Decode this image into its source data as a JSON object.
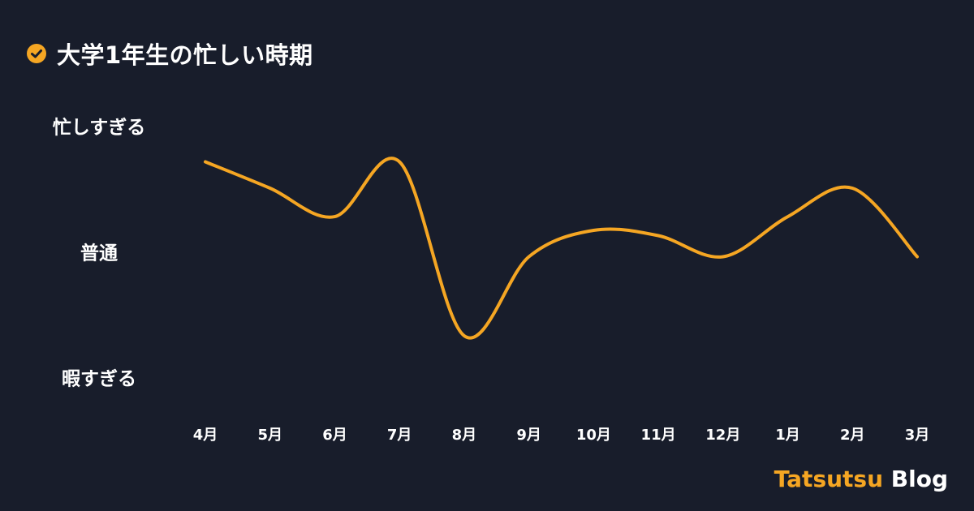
{
  "title": "大学1年生の忙しい時期",
  "brand": {
    "accent": "Tatsutsu",
    "rest": "Blog"
  },
  "colors": {
    "background": "#181d2b",
    "line": "#f5a623",
    "text": "#ffffff",
    "accent": "#f5a623"
  },
  "icons": {
    "title_icon": "check-circle-icon"
  },
  "chart_data": {
    "type": "line",
    "title": "大学1年生の忙しい時期",
    "xlabel": "",
    "ylabel": "",
    "categories": [
      "4月",
      "5月",
      "6月",
      "7月",
      "8月",
      "9月",
      "10月",
      "11月",
      "12月",
      "1月",
      "2月",
      "3月"
    ],
    "y_tick_labels": [
      "忙しすぎる",
      "普通",
      "暇すぎる"
    ],
    "y_scale": "1 = 暇すぎる, 2 = 普通, 3 = 忙しすぎる",
    "ylim": [
      1,
      3
    ],
    "grid": false,
    "legend": "none",
    "series": [
      {
        "values": [
          2.85,
          2.6,
          2.33,
          2.85,
          1.2,
          1.95,
          2.2,
          2.15,
          1.95,
          2.33,
          2.6,
          1.95
        ]
      }
    ]
  }
}
